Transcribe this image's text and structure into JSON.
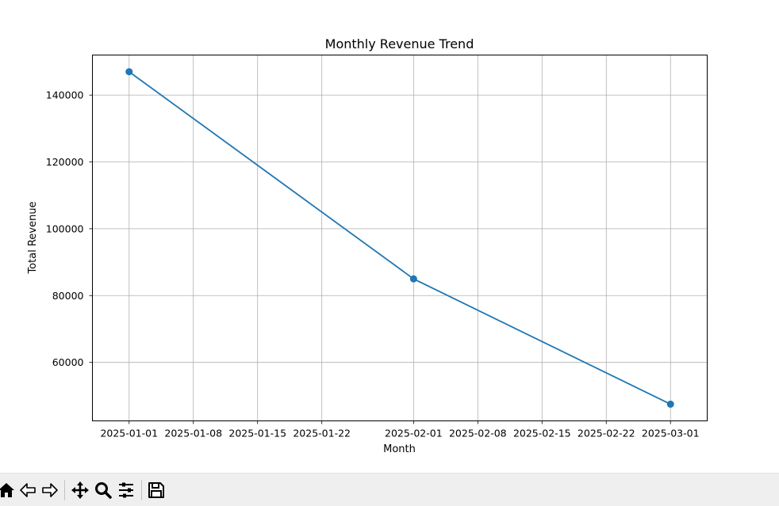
{
  "chart_data": {
    "type": "line",
    "title": "Monthly Revenue Trend",
    "xlabel": "Month",
    "ylabel": "Total Revenue",
    "x": [
      "2025-01-01",
      "2025-02-01",
      "2025-03-01"
    ],
    "series": [
      {
        "values": [
          147000,
          85000,
          47500
        ],
        "color": "#1f77b4",
        "marker": "circle"
      }
    ],
    "xticks": [
      "2025-01-01",
      "2025-01-08",
      "2025-01-15",
      "2025-01-22",
      "2025-02-01",
      "2025-02-08",
      "2025-02-15",
      "2025-02-22",
      "2025-03-01"
    ],
    "yticks": [
      60000,
      80000,
      100000,
      120000,
      140000
    ],
    "xlim": [
      "2024-12-28",
      "2025-03-05"
    ],
    "ylim": [
      42500,
      152000
    ],
    "grid": true
  },
  "toolbar": {
    "buttons": [
      {
        "name": "home-button",
        "icon": "home-icon"
      },
      {
        "name": "back-button",
        "icon": "arrow-left-icon"
      },
      {
        "name": "forward-button",
        "icon": "arrow-right-icon"
      },
      {
        "name": "pan-button",
        "icon": "move-icon"
      },
      {
        "name": "zoom-button",
        "icon": "magnifier-icon"
      },
      {
        "name": "configure-subplots-button",
        "icon": "sliders-icon"
      },
      {
        "name": "save-button",
        "icon": "floppy-disk-icon"
      }
    ]
  }
}
